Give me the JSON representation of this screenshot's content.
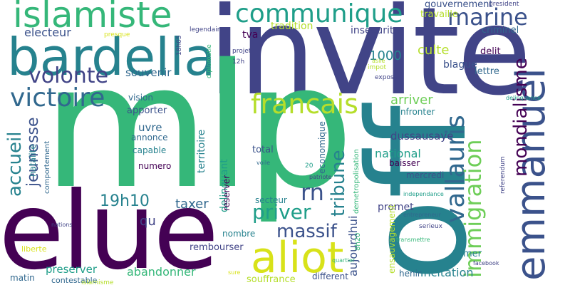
{
  "palette": {
    "dark_purple": "#440154",
    "indigo": "#3b528b",
    "indigo2": "#414487",
    "slate_blue": "#31688e",
    "teal": "#26828e",
    "sea_green": "#1f9e89",
    "green": "#35b779",
    "light_green": "#6ece58",
    "lime": "#b5de2b",
    "yellow": "#d8e219",
    "background": "#ffffff"
  },
  "words": [
    "invite",
    "mlp",
    "off",
    "elue",
    "bardella",
    "islamiste",
    "aliot",
    "emmanuel",
    "communique",
    "francais",
    "vallauris",
    "victoire",
    "immigration",
    "mondialisme",
    "marine",
    "volonte",
    "priver",
    "rn",
    "massif",
    "accueil",
    "jeunesse",
    "tribune",
    "19h10",
    "arriver",
    "culte",
    "1000",
    "taxer",
    "aujourdhui",
    "souvenir",
    "tradition",
    "insecurite",
    "electeur",
    "gouvernement",
    "travaille",
    "criminel",
    "tva",
    "blague",
    "delit",
    "lettre",
    "vision",
    "apporter",
    "uvre",
    "annonce",
    "capable",
    "numero",
    "natalite",
    "comportement",
    "territoire",
    "delinquant",
    "confronter",
    "dussausaye",
    "national",
    "baisser",
    "mercredi",
    "total",
    "economique",
    "secteur",
    "promet",
    "mer",
    "henin",
    "qu",
    "nombre",
    "rembourser",
    "reserver",
    "abandonner",
    "preserver",
    "incitation",
    "souffrance",
    "different",
    "ensauvagement",
    "contestable",
    "matin",
    "liberte",
    "islamisme",
    "presque",
    "legendaire",
    "projet",
    "12h",
    "18h05",
    "diplomatie",
    "impot",
    "asile",
    "exposer",
    "president",
    "delinquance",
    "referendum",
    "demetropolisation",
    "8h20",
    "transmettre",
    "independance",
    "entrepreneur",
    "serieux",
    "facebook",
    "patriote",
    "voile",
    "nations",
    "quartier",
    "sure",
    "20"
  ]
}
